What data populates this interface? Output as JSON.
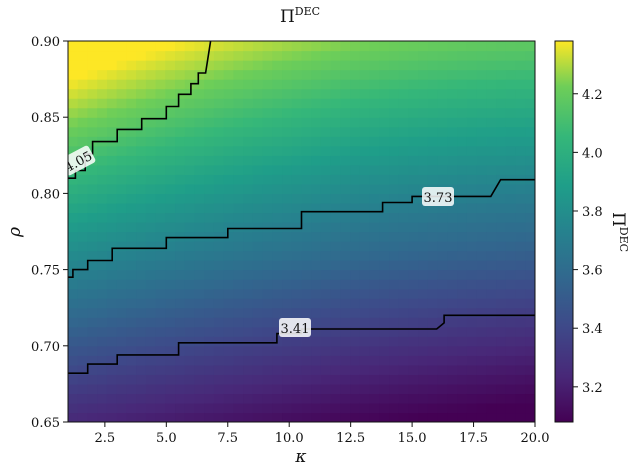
{
  "chart_data": {
    "type": "heatmap",
    "title": "Π",
    "title_sup": "DEC",
    "xlabel": "κ",
    "ylabel": "ρ",
    "colorbar_label": "Π",
    "colorbar_label_sup": "DEC",
    "colormap": "viridis",
    "xlim": [
      1.0,
      20.0
    ],
    "ylim": [
      0.65,
      0.9
    ],
    "x_ticks": [
      2.5,
      5.0,
      7.5,
      10.0,
      12.5,
      15.0,
      17.5,
      20.0
    ],
    "x_tick_labels": [
      "2.5",
      "5.0",
      "7.5",
      "10.0",
      "12.5",
      "15.0",
      "17.5",
      "20.0"
    ],
    "y_ticks": [
      0.65,
      0.7,
      0.75,
      0.8,
      0.85,
      0.9
    ],
    "y_tick_labels": [
      "0.65",
      "0.70",
      "0.75",
      "0.80",
      "0.85",
      "0.90"
    ],
    "colorbar_range": [
      3.08,
      4.38
    ],
    "colorbar_ticks": [
      3.2,
      3.4,
      3.6,
      3.8,
      4.0,
      4.2
    ],
    "colorbar_tick_labels": [
      "3.2",
      "3.4",
      "3.6",
      "3.8",
      "4.0",
      "4.2"
    ],
    "contours": [
      {
        "level": 3.41,
        "label": "3.41",
        "points": [
          [
            1.0,
            0.682
          ],
          [
            1.8,
            0.682
          ],
          [
            1.8,
            0.688
          ],
          [
            3.0,
            0.688
          ],
          [
            3.0,
            0.694
          ],
          [
            5.5,
            0.694
          ],
          [
            5.5,
            0.702
          ],
          [
            9.5,
            0.702
          ],
          [
            9.5,
            0.708
          ],
          [
            10.5,
            0.708
          ],
          [
            10.5,
            0.711
          ],
          [
            16.0,
            0.711
          ],
          [
            16.3,
            0.715
          ],
          [
            16.3,
            0.72
          ],
          [
            20.0,
            0.72
          ]
        ]
      },
      {
        "level": 3.73,
        "label": "3.73",
        "points": [
          [
            1.0,
            0.745
          ],
          [
            1.2,
            0.745
          ],
          [
            1.2,
            0.75
          ],
          [
            1.8,
            0.75
          ],
          [
            1.8,
            0.756
          ],
          [
            2.8,
            0.756
          ],
          [
            2.8,
            0.764
          ],
          [
            5.0,
            0.764
          ],
          [
            5.0,
            0.771
          ],
          [
            7.5,
            0.771
          ],
          [
            7.5,
            0.777
          ],
          [
            10.5,
            0.777
          ],
          [
            10.5,
            0.788
          ],
          [
            13.8,
            0.788
          ],
          [
            13.8,
            0.794
          ],
          [
            15.0,
            0.794
          ],
          [
            15.0,
            0.798
          ],
          [
            18.2,
            0.798
          ],
          [
            18.6,
            0.809
          ],
          [
            20.0,
            0.809
          ]
        ]
      },
      {
        "level": 4.05,
        "label": "4.05",
        "points": [
          [
            1.0,
            0.81
          ],
          [
            1.3,
            0.81
          ],
          [
            1.3,
            0.815
          ],
          [
            1.7,
            0.815
          ],
          [
            1.7,
            0.826
          ],
          [
            2.0,
            0.826
          ],
          [
            2.0,
            0.834
          ],
          [
            3.0,
            0.834
          ],
          [
            3.0,
            0.842
          ],
          [
            4.0,
            0.842
          ],
          [
            4.0,
            0.849
          ],
          [
            5.0,
            0.849
          ],
          [
            5.0,
            0.857
          ],
          [
            5.5,
            0.857
          ],
          [
            5.5,
            0.865
          ],
          [
            6.0,
            0.865
          ],
          [
            6.0,
            0.872
          ],
          [
            6.3,
            0.872
          ],
          [
            6.3,
            0.879
          ],
          [
            6.6,
            0.879
          ],
          [
            6.8,
            0.9
          ]
        ]
      }
    ]
  }
}
